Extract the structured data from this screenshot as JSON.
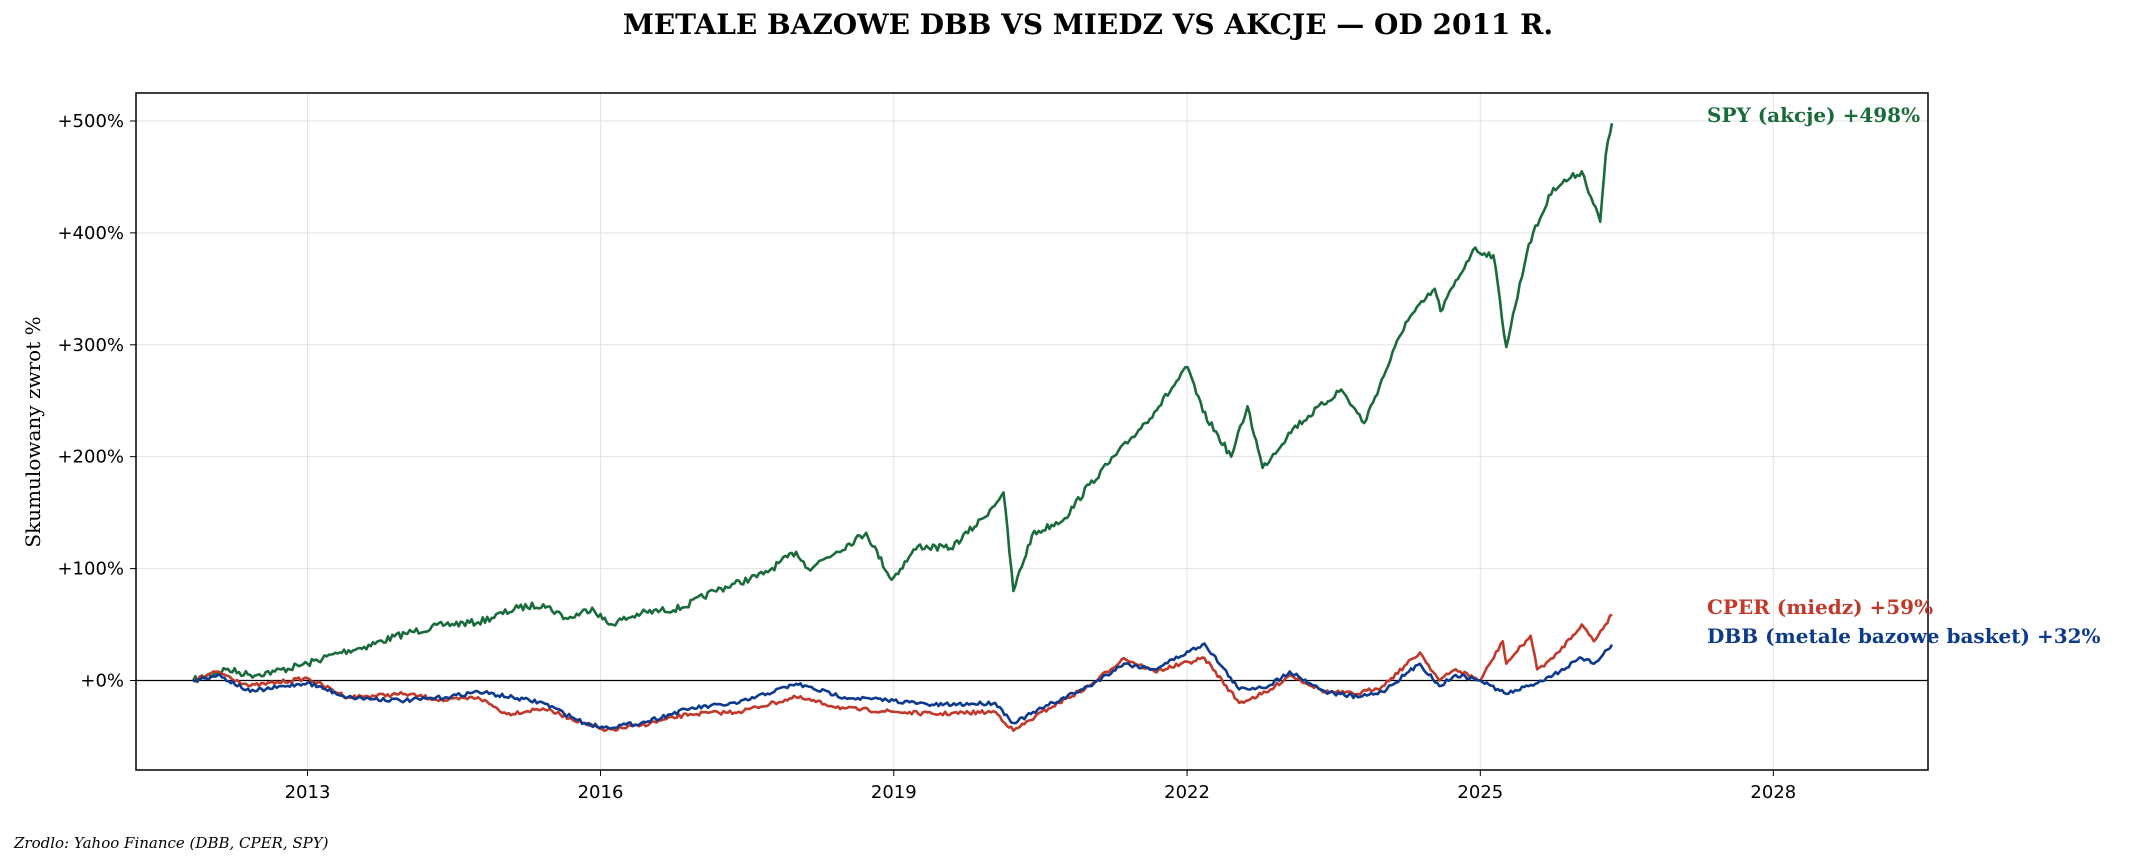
{
  "chart_data": {
    "type": "line",
    "title": "METALE BAZOWE DBB VS MIEDZ VS AKCJE — OD 2011 R.",
    "ylabel": "Skumulowany zwrot %",
    "xlabel": "",
    "source": "Zrodlo: Yahoo Finance (DBB, CPER, SPY)",
    "xlim": [
      "2011-04-01",
      "2029-08-01"
    ],
    "ylim": [
      -80,
      525
    ],
    "x_ticks": [
      "2013",
      "2016",
      "2019",
      "2022",
      "2025",
      "2028"
    ],
    "y_ticks": [
      0,
      100,
      200,
      300,
      400,
      500
    ],
    "y_tick_labels": [
      "+0%",
      "+100%",
      "+200%",
      "+300%",
      "+400%",
      "+500%"
    ],
    "grid": true,
    "zero_line": true,
    "series": [
      {
        "name": "SPY (akcje)",
        "end_label": "SPY (akcje)  +498%",
        "color": "#1a6b3c",
        "points": [
          [
            "2011-11-01",
            0
          ],
          [
            "2012-03-01",
            10
          ],
          [
            "2012-06-01",
            5
          ],
          [
            "2012-09-01",
            8
          ],
          [
            "2013-01-01",
            15
          ],
          [
            "2013-05-01",
            25
          ],
          [
            "2013-08-01",
            30
          ],
          [
            "2014-01-01",
            42
          ],
          [
            "2014-06-01",
            50
          ],
          [
            "2014-10-01",
            52
          ],
          [
            "2015-03-01",
            65
          ],
          [
            "2015-06-01",
            68
          ],
          [
            "2015-09-01",
            55
          ],
          [
            "2015-12-01",
            65
          ],
          [
            "2016-02-01",
            50
          ],
          [
            "2016-06-01",
            60
          ],
          [
            "2016-11-01",
            65
          ],
          [
            "2017-03-01",
            80
          ],
          [
            "2017-09-01",
            95
          ],
          [
            "2018-01-01",
            115
          ],
          [
            "2018-02-15",
            100
          ],
          [
            "2018-06-01",
            115
          ],
          [
            "2018-09-20",
            132
          ],
          [
            "2018-12-24",
            90
          ],
          [
            "2019-04-01",
            120
          ],
          [
            "2019-08-01",
            118
          ],
          [
            "2019-12-01",
            145
          ],
          [
            "2020-02-15",
            168
          ],
          [
            "2020-03-23",
            80
          ],
          [
            "2020-06-01",
            130
          ],
          [
            "2020-10-01",
            145
          ],
          [
            "2021-01-01",
            175
          ],
          [
            "2021-06-01",
            215
          ],
          [
            "2021-09-01",
            240
          ],
          [
            "2022-01-03",
            280
          ],
          [
            "2022-03-01",
            240
          ],
          [
            "2022-06-15",
            200
          ],
          [
            "2022-08-15",
            245
          ],
          [
            "2022-10-10",
            190
          ],
          [
            "2023-02-01",
            225
          ],
          [
            "2023-07-31",
            260
          ],
          [
            "2023-10-25",
            230
          ],
          [
            "2024-03-28",
            320
          ],
          [
            "2024-07-15",
            350
          ],
          [
            "2024-08-05",
            330
          ],
          [
            "2024-12-05",
            385
          ],
          [
            "2025-02-19",
            380
          ],
          [
            "2025-04-08",
            298
          ],
          [
            "2025-07-01",
            390
          ],
          [
            "2025-10-01",
            440
          ],
          [
            "2026-01-15",
            455
          ],
          [
            "2026-03-25",
            410
          ],
          [
            "2026-04-15",
            470
          ],
          [
            "2026-05-08",
            498
          ]
        ]
      },
      {
        "name": "CPER (miedz)",
        "end_label": "CPER (miedz)  +59%",
        "color": "#c0392b",
        "points": [
          [
            "2011-11-01",
            0
          ],
          [
            "2012-02-01",
            8
          ],
          [
            "2012-06-01",
            -5
          ],
          [
            "2013-01-01",
            2
          ],
          [
            "2013-06-01",
            -15
          ],
          [
            "2014-01-01",
            -12
          ],
          [
            "2014-06-01",
            -18
          ],
          [
            "2014-10-01",
            -15
          ],
          [
            "2015-01-15",
            -30
          ],
          [
            "2015-06-01",
            -25
          ],
          [
            "2015-11-01",
            -38
          ],
          [
            "2016-01-15",
            -45
          ],
          [
            "2016-06-01",
            -40
          ],
          [
            "2016-12-01",
            -30
          ],
          [
            "2017-06-01",
            -28
          ],
          [
            "2018-01-01",
            -15
          ],
          [
            "2018-07-01",
            -25
          ],
          [
            "2019-01-01",
            -28
          ],
          [
            "2019-06-01",
            -30
          ],
          [
            "2020-01-15",
            -28
          ],
          [
            "2020-03-23",
            -45
          ],
          [
            "2020-08-01",
            -25
          ],
          [
            "2021-01-01",
            -5
          ],
          [
            "2021-05-10",
            20
          ],
          [
            "2021-09-01",
            8
          ],
          [
            "2022-03-07",
            20
          ],
          [
            "2022-07-15",
            -20
          ],
          [
            "2022-11-01",
            -10
          ],
          [
            "2023-01-20",
            5
          ],
          [
            "2023-06-01",
            -10
          ],
          [
            "2023-10-01",
            -12
          ],
          [
            "2024-01-01",
            -5
          ],
          [
            "2024-05-20",
            25
          ],
          [
            "2024-08-01",
            0
          ],
          [
            "2024-10-01",
            10
          ],
          [
            "2025-01-01",
            0
          ],
          [
            "2025-03-26",
            35
          ],
          [
            "2025-04-08",
            15
          ],
          [
            "2025-07-08",
            40
          ],
          [
            "2025-08-01",
            10
          ],
          [
            "2025-10-01",
            20
          ],
          [
            "2026-01-15",
            50
          ],
          [
            "2026-03-01",
            35
          ],
          [
            "2026-05-08",
            59
          ]
        ]
      },
      {
        "name": "DBB (metale bazowe basket)",
        "end_label": "DBB (metale bazowe basket)  +32%",
        "color": "#0d3a8c",
        "points": [
          [
            "2011-11-01",
            0
          ],
          [
            "2012-02-01",
            5
          ],
          [
            "2012-06-01",
            -10
          ],
          [
            "2013-01-01",
            -2
          ],
          [
            "2013-06-01",
            -15
          ],
          [
            "2014-01-01",
            -18
          ],
          [
            "2014-06-01",
            -15
          ],
          [
            "2014-10-01",
            -10
          ],
          [
            "2015-06-01",
            -20
          ],
          [
            "2015-11-01",
            -38
          ],
          [
            "2016-01-15",
            -42
          ],
          [
            "2016-06-01",
            -38
          ],
          [
            "2016-12-01",
            -25
          ],
          [
            "2017-06-01",
            -20
          ],
          [
            "2018-01-01",
            -3
          ],
          [
            "2018-07-01",
            -15
          ],
          [
            "2019-01-01",
            -18
          ],
          [
            "2019-06-01",
            -22
          ],
          [
            "2020-01-15",
            -20
          ],
          [
            "2020-03-23",
            -38
          ],
          [
            "2020-08-01",
            -22
          ],
          [
            "2021-01-01",
            -5
          ],
          [
            "2021-05-10",
            15
          ],
          [
            "2021-09-01",
            10
          ],
          [
            "2022-03-07",
            33
          ],
          [
            "2022-07-15",
            -8
          ],
          [
            "2022-11-01",
            -5
          ],
          [
            "2023-01-20",
            8
          ],
          [
            "2023-06-01",
            -10
          ],
          [
            "2023-10-01",
            -15
          ],
          [
            "2024-01-01",
            -10
          ],
          [
            "2024-05-20",
            15
          ],
          [
            "2024-08-01",
            -5
          ],
          [
            "2024-10-01",
            5
          ],
          [
            "2025-01-01",
            0
          ],
          [
            "2025-04-08",
            -12
          ],
          [
            "2025-07-01",
            -5
          ],
          [
            "2025-10-01",
            5
          ],
          [
            "2026-01-15",
            20
          ],
          [
            "2026-03-01",
            15
          ],
          [
            "2026-05-08",
            32
          ]
        ]
      }
    ]
  }
}
